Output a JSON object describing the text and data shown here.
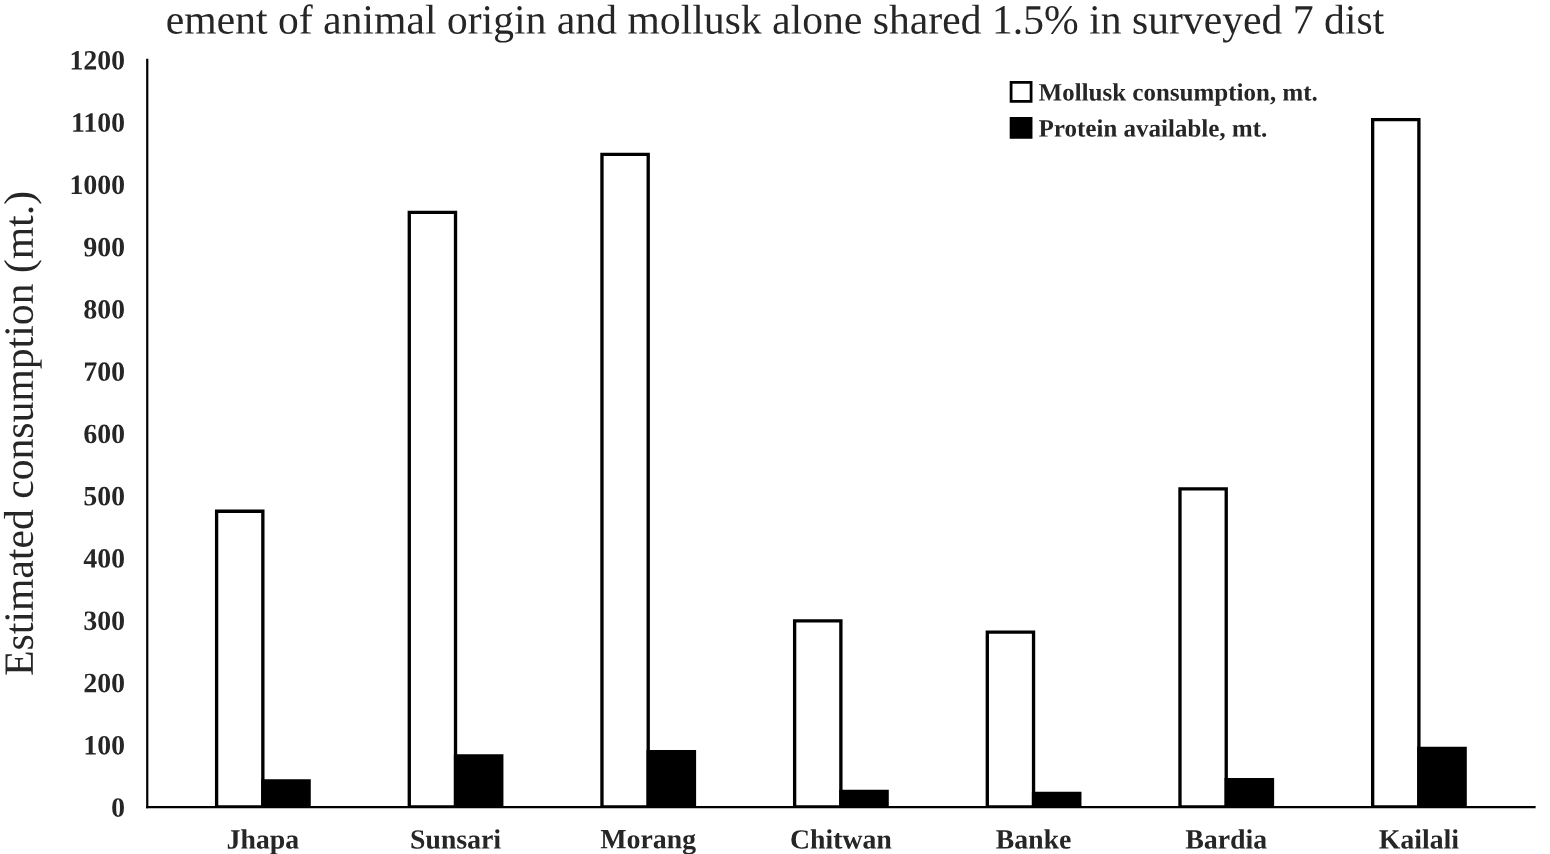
{
  "chart_data": {
    "type": "bar",
    "ylabel": "Estimated consumption (mt.)",
    "annotations": [
      "ement of animal origin and mollusk alone shared 1.5% in surveyed 7 dist"
    ],
    "categories": [
      "Jhapa",
      "Sunsari",
      "Morang",
      "Chitwan",
      "Banke",
      "Bardia",
      "Kailali"
    ],
    "series": [
      {
        "name": "Mollusk consumption, mt.",
        "color": "#ffffff",
        "values": [
          475,
          955,
          1048,
          299,
          281,
          511,
          1104
        ]
      },
      {
        "name": "Protein available, mt.",
        "color": "#000000",
        "values": [
          42,
          82,
          89,
          25,
          22,
          44,
          94
        ]
      }
    ],
    "ylim": [
      0,
      1200
    ],
    "yticks": [
      0,
      100,
      200,
      300,
      400,
      500,
      600,
      700,
      800,
      900,
      1000,
      1100,
      1200
    ],
    "grid": false,
    "legend": "top right"
  }
}
